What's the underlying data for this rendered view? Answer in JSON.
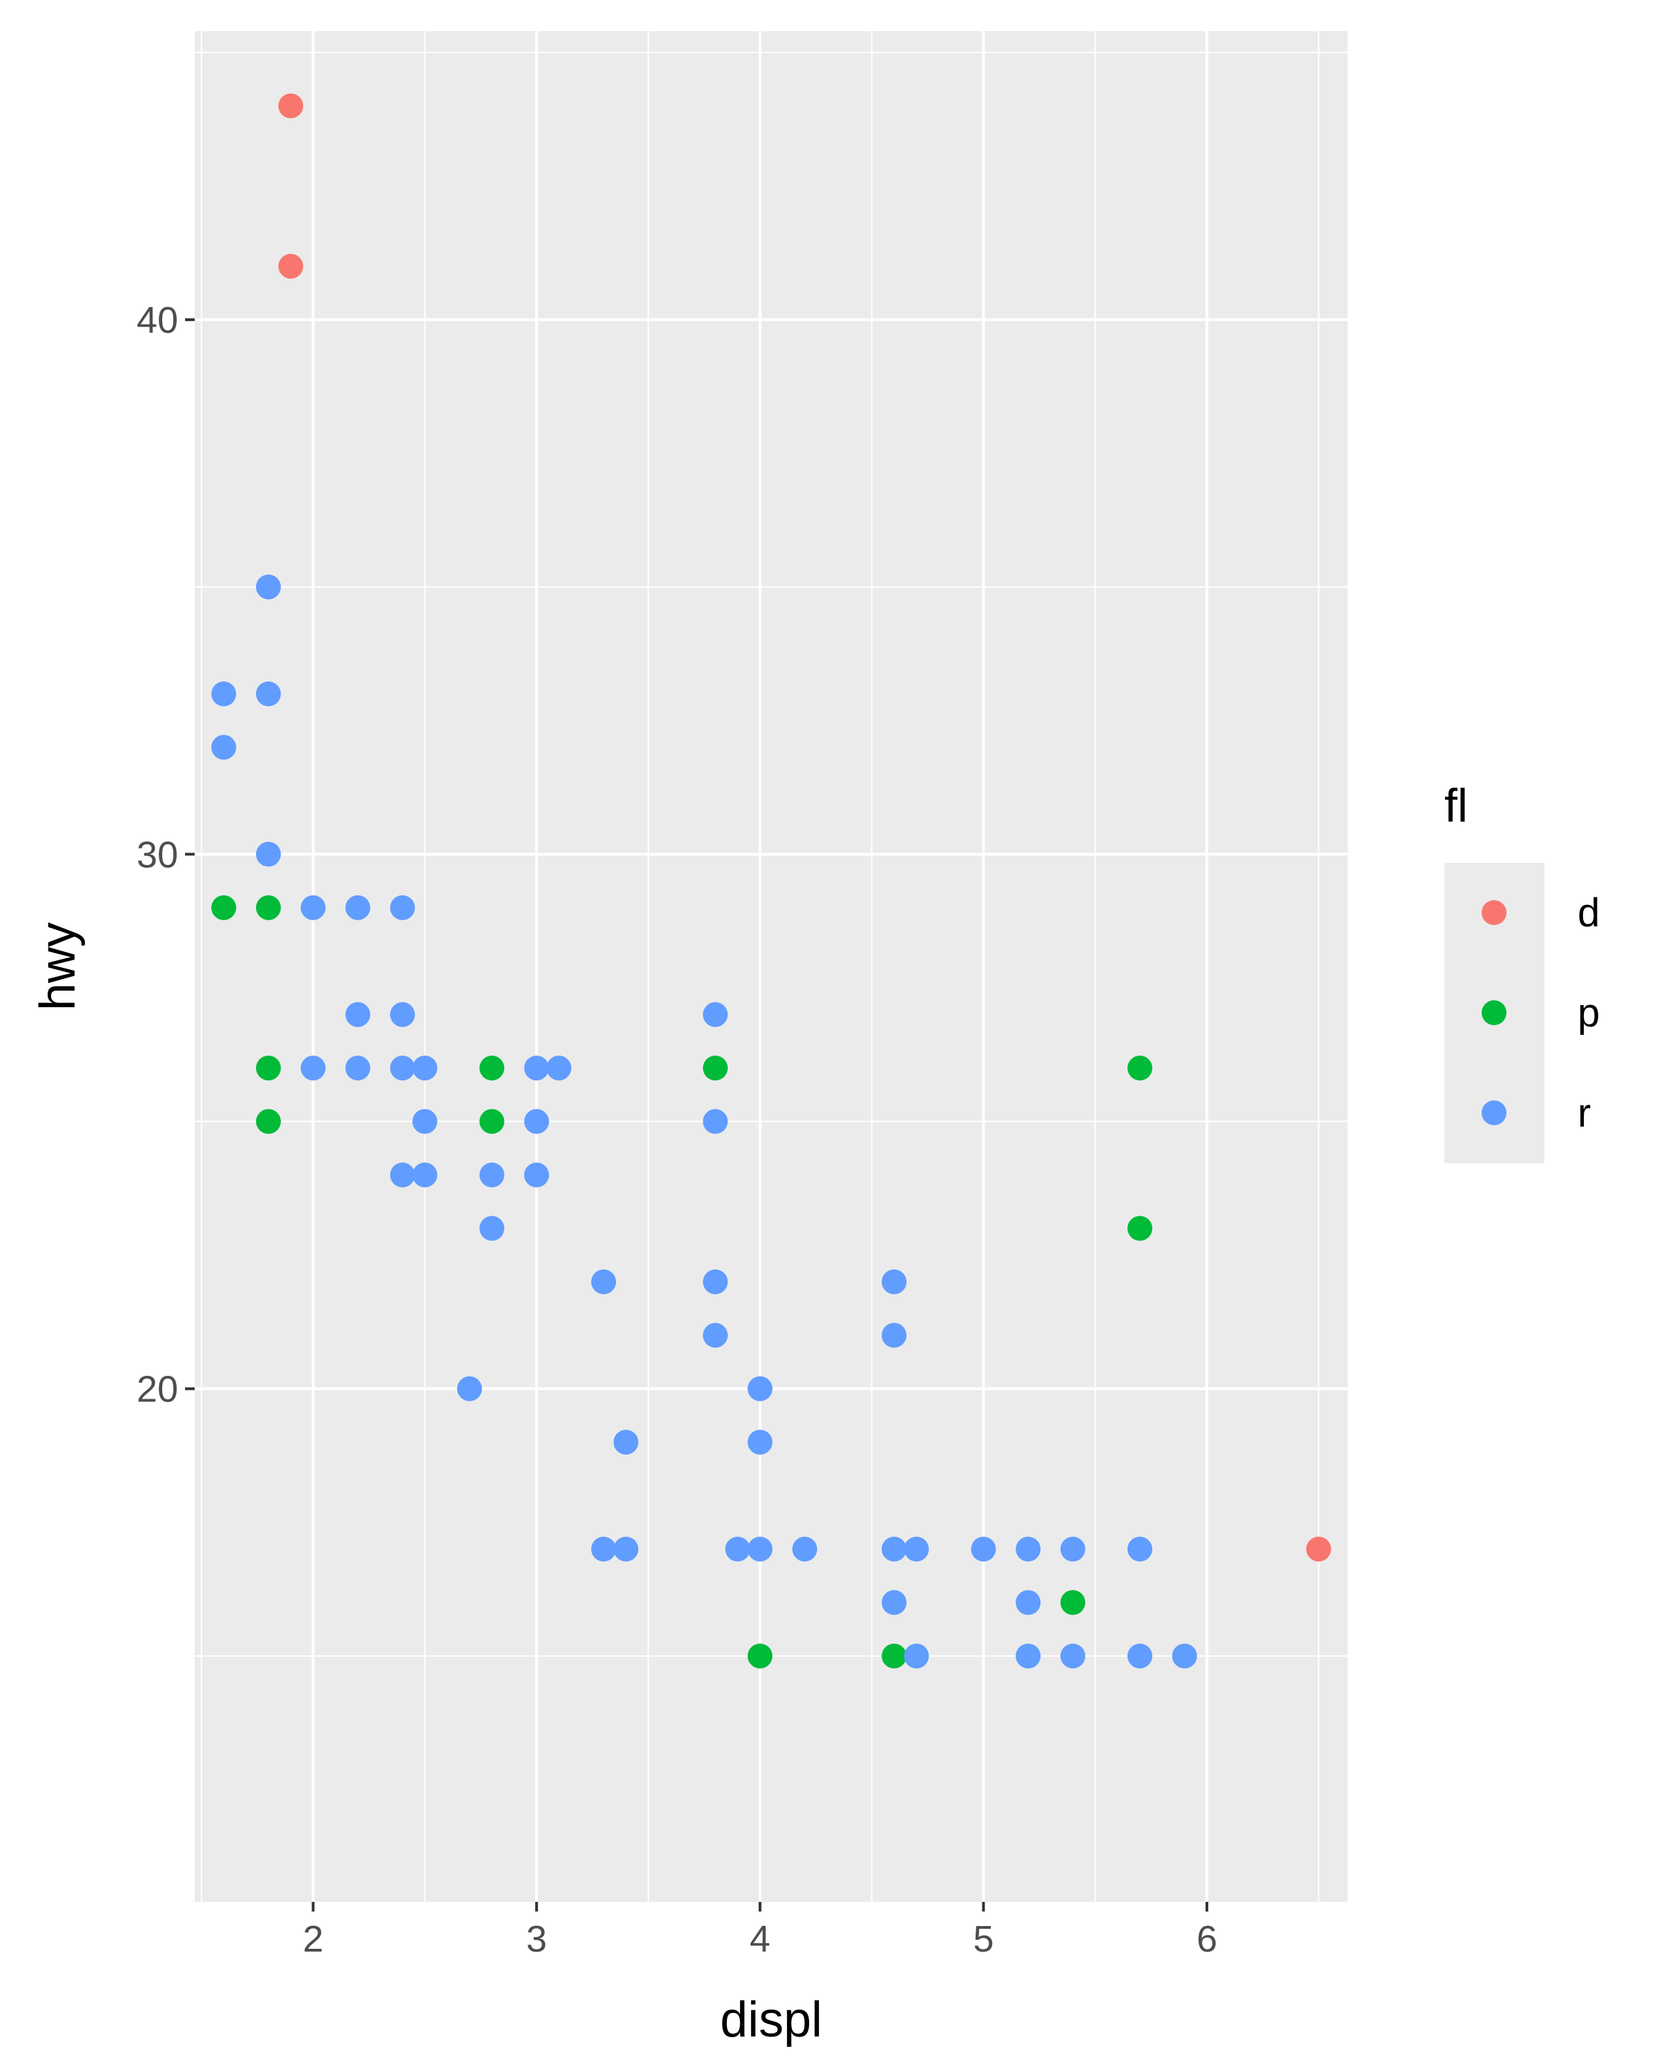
{
  "chart_data": {
    "type": "scatter",
    "title": "",
    "xlabel": "displ",
    "ylabel": "hwy",
    "xlim": [
      1.47,
      6.63
    ],
    "ylim": [
      10.4,
      45.4
    ],
    "xticks": [
      2,
      3,
      4,
      5,
      6
    ],
    "yticks": [
      20,
      30,
      40
    ],
    "grid": true,
    "background": "#ebebeb",
    "legend": {
      "title": "fl",
      "position": "right",
      "entries": [
        {
          "label": "d",
          "color": "#f8766d"
        },
        {
          "label": "p",
          "color": "#00ba38"
        },
        {
          "label": "r",
          "color": "#619cff"
        }
      ]
    },
    "series": [
      {
        "name": "d",
        "color": "#f8766d",
        "points": [
          [
            1.9,
            44
          ],
          [
            1.9,
            41
          ],
          [
            6.5,
            17
          ]
        ]
      },
      {
        "name": "p",
        "color": "#00ba38",
        "points": [
          [
            1.6,
            29
          ],
          [
            1.8,
            29
          ],
          [
            1.8,
            26
          ],
          [
            1.8,
            25
          ],
          [
            2.8,
            26
          ],
          [
            2.8,
            25
          ],
          [
            3.8,
            26
          ],
          [
            5.7,
            26
          ],
          [
            5.7,
            23
          ],
          [
            4.0,
            15
          ],
          [
            4.6,
            15
          ],
          [
            5.4,
            16
          ]
        ]
      },
      {
        "name": "r",
        "color": "#619cff",
        "points": [
          [
            1.8,
            35
          ],
          [
            1.6,
            33
          ],
          [
            1.8,
            33
          ],
          [
            1.6,
            32
          ],
          [
            1.8,
            30
          ],
          [
            2.0,
            29
          ],
          [
            2.2,
            29
          ],
          [
            2.4,
            29
          ],
          [
            2.2,
            27
          ],
          [
            2.4,
            27
          ],
          [
            3.8,
            27
          ],
          [
            2.0,
            26
          ],
          [
            2.2,
            26
          ],
          [
            2.4,
            26
          ],
          [
            2.5,
            26
          ],
          [
            3.0,
            26
          ],
          [
            3.1,
            26
          ],
          [
            2.5,
            25
          ],
          [
            3.0,
            25
          ],
          [
            3.8,
            25
          ],
          [
            2.4,
            24
          ],
          [
            2.5,
            24
          ],
          [
            2.8,
            24
          ],
          [
            3.0,
            24
          ],
          [
            2.8,
            23
          ],
          [
            3.3,
            22
          ],
          [
            3.8,
            22
          ],
          [
            4.6,
            22
          ],
          [
            3.8,
            21
          ],
          [
            4.6,
            21
          ],
          [
            2.7,
            20
          ],
          [
            4.0,
            20
          ],
          [
            3.4,
            19
          ],
          [
            4.0,
            19
          ],
          [
            3.3,
            17
          ],
          [
            3.4,
            17
          ],
          [
            3.9,
            17
          ],
          [
            4.0,
            17
          ],
          [
            4.2,
            17
          ],
          [
            4.6,
            17
          ],
          [
            4.7,
            17
          ],
          [
            5.0,
            17
          ],
          [
            5.2,
            17
          ],
          [
            5.4,
            17
          ],
          [
            5.7,
            17
          ],
          [
            4.6,
            16
          ],
          [
            5.2,
            16
          ],
          [
            4.7,
            15
          ],
          [
            5.2,
            15
          ],
          [
            5.4,
            15
          ],
          [
            5.7,
            15
          ],
          [
            5.9,
            15
          ]
        ]
      }
    ]
  }
}
